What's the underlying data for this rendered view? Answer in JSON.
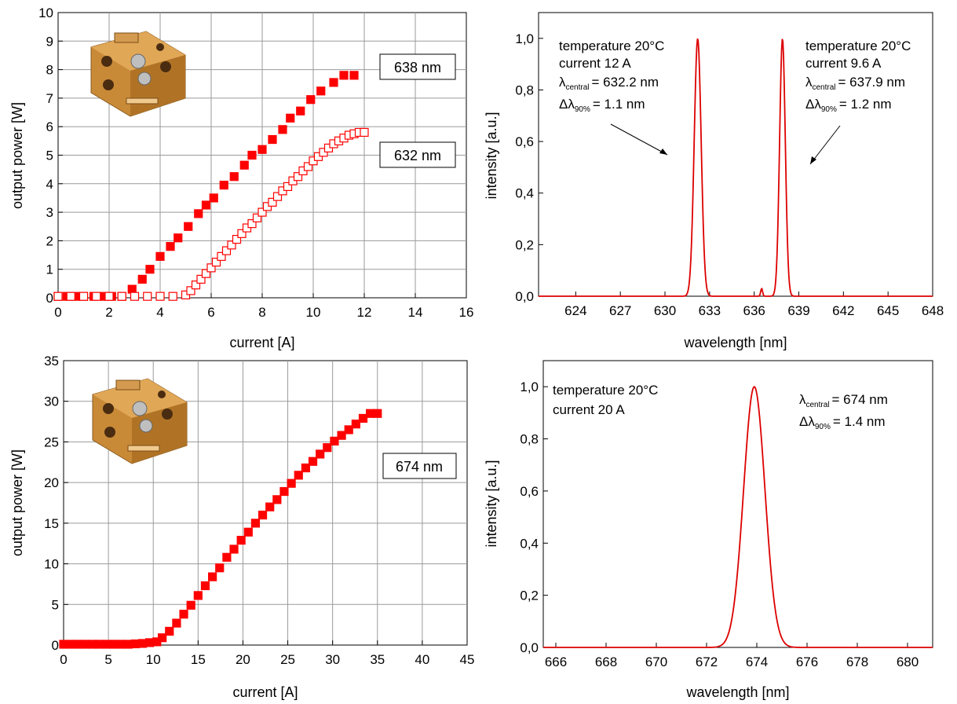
{
  "chart_data": [
    {
      "id": "liv638632",
      "type": "scatter",
      "xlabel": "current [A]",
      "ylabel": "output power [W]",
      "xlim": [
        0,
        16
      ],
      "ylim": [
        0,
        10
      ],
      "xticks": [
        0,
        2,
        4,
        6,
        8,
        10,
        12,
        14,
        16
      ],
      "yticks": [
        0,
        1,
        2,
        3,
        4,
        5,
        6,
        7,
        8,
        9,
        10
      ],
      "grid": true,
      "series": [
        {
          "name": "638 nm",
          "marker": "filled-square",
          "color": "#ff0000",
          "x": [
            0.0,
            0.35,
            0.7,
            1.0,
            1.4,
            1.8,
            2.1,
            2.5,
            2.9,
            3.3,
            3.6,
            4.0,
            4.4,
            4.7,
            5.1,
            5.5,
            5.8,
            6.1,
            6.5,
            6.9,
            7.3,
            7.6,
            8.0,
            8.4,
            8.8,
            9.1,
            9.5,
            9.9,
            10.3,
            10.8,
            11.2,
            11.6
          ],
          "y": [
            0.05,
            0.05,
            0.05,
            0.05,
            0.05,
            0.05,
            0.05,
            0.05,
            0.3,
            0.65,
            1.0,
            1.45,
            1.8,
            2.1,
            2.5,
            2.95,
            3.25,
            3.5,
            3.95,
            4.25,
            4.65,
            5.0,
            5.2,
            5.55,
            5.9,
            6.3,
            6.55,
            6.95,
            7.25,
            7.55,
            7.8,
            7.8
          ]
        },
        {
          "name": "632 nm",
          "marker": "open-square",
          "color": "#ff0000",
          "x": [
            0.0,
            0.5,
            1.0,
            1.5,
            2.0,
            2.5,
            3.0,
            3.5,
            4.0,
            4.5,
            5.0,
            5.2,
            5.4,
            5.6,
            5.8,
            6.0,
            6.2,
            6.4,
            6.6,
            6.8,
            7.0,
            7.2,
            7.4,
            7.6,
            7.8,
            8.0,
            8.2,
            8.4,
            8.6,
            8.8,
            9.0,
            9.2,
            9.4,
            9.6,
            9.8,
            10.0,
            10.2,
            10.4,
            10.6,
            10.8,
            11.0,
            11.2,
            11.4,
            11.6,
            11.8,
            12.0
          ],
          "y": [
            0.05,
            0.05,
            0.05,
            0.05,
            0.05,
            0.05,
            0.05,
            0.05,
            0.05,
            0.05,
            0.1,
            0.25,
            0.45,
            0.65,
            0.85,
            1.05,
            1.25,
            1.45,
            1.65,
            1.85,
            2.05,
            2.25,
            2.45,
            2.6,
            2.8,
            3.0,
            3.2,
            3.35,
            3.55,
            3.75,
            3.9,
            4.1,
            4.25,
            4.45,
            4.6,
            4.8,
            4.95,
            5.1,
            5.25,
            5.4,
            5.5,
            5.6,
            5.7,
            5.75,
            5.8,
            5.8
          ]
        }
      ],
      "labels": [
        "638 nm",
        "632 nm"
      ]
    },
    {
      "id": "spec632638",
      "type": "line",
      "xlabel": "wavelength [nm]",
      "ylabel": "intensity [a.u.]",
      "xlim": [
        621.5,
        648
      ],
      "ylim": [
        0,
        1.1
      ],
      "xticks": [
        "624",
        "627",
        "630",
        "633",
        "636",
        "639",
        "642",
        "645",
        "648"
      ],
      "yticks": [
        "0,0",
        "0,2",
        "0,4",
        "0,6",
        "0,8",
        "1,0"
      ],
      "grid": false,
      "series": [
        {
          "color": "#dd0000",
          "peaks": [
            {
              "center": 632.2,
              "fwhm": 0.55,
              "amplitude": 1.0
            },
            {
              "center": 637.9,
              "fwhm": 0.45,
              "amplitude": 1.0
            },
            {
              "center": 636.5,
              "fwhm": 0.15,
              "amplitude": 0.03
            }
          ]
        }
      ],
      "annotations": [
        {
          "lines": [
            "temperature 20°C",
            "current 12 A"
          ],
          "lambda_central": "= 632.2 nm",
          "delta_lambda": "= 1.1 nm"
        },
        {
          "lines": [
            "temperature 20°C",
            "current 9.6 A"
          ],
          "lambda_central": "= 637.9 nm",
          "delta_lambda": "= 1.2 nm"
        }
      ]
    },
    {
      "id": "liv674",
      "type": "scatter",
      "xlabel": "current [A]",
      "ylabel": "output power [W]",
      "xlim": [
        0,
        45
      ],
      "ylim": [
        0,
        35
      ],
      "xticks": [
        0,
        5,
        10,
        15,
        20,
        25,
        30,
        35,
        40,
        45
      ],
      "yticks": [
        0,
        5,
        10,
        15,
        20,
        25,
        30,
        35
      ],
      "grid": true,
      "series": [
        {
          "name": "674 nm",
          "marker": "filled-square",
          "color": "#ff0000",
          "x": [
            0.0,
            0.8,
            1.6,
            2.4,
            3.2,
            4.0,
            4.8,
            5.6,
            6.4,
            7.2,
            8.0,
            8.8,
            9.6,
            10.4,
            11.0,
            11.8,
            12.6,
            13.4,
            14.2,
            15.0,
            15.8,
            16.6,
            17.4,
            18.2,
            19.0,
            19.8,
            20.6,
            21.4,
            22.2,
            23.0,
            23.8,
            24.6,
            25.4,
            26.2,
            27.0,
            27.8,
            28.6,
            29.4,
            30.2,
            31.0,
            31.8,
            32.6,
            33.4,
            34.2,
            35.0
          ],
          "y": [
            0.1,
            0.1,
            0.1,
            0.1,
            0.1,
            0.1,
            0.1,
            0.1,
            0.1,
            0.1,
            0.15,
            0.2,
            0.3,
            0.4,
            0.9,
            1.7,
            2.7,
            3.8,
            4.9,
            6.1,
            7.3,
            8.4,
            9.5,
            10.8,
            11.8,
            12.9,
            13.9,
            15.0,
            16.0,
            17.0,
            17.9,
            18.9,
            19.9,
            20.9,
            21.8,
            22.6,
            23.5,
            24.3,
            25.1,
            25.8,
            26.5,
            27.2,
            27.9,
            28.5,
            28.5
          ]
        }
      ],
      "labels": [
        "674 nm"
      ]
    },
    {
      "id": "spec674",
      "type": "line",
      "xlabel": "wavelength [nm]",
      "ylabel": "intensity [a.u.]",
      "xlim": [
        665.5,
        681
      ],
      "ylim": [
        0,
        1.1
      ],
      "xticks": [
        "666",
        "668",
        "670",
        "672",
        "674",
        "676",
        "678",
        "680"
      ],
      "yticks": [
        "0,0",
        "0,2",
        "0,4",
        "0,6",
        "0,8",
        "1,0"
      ],
      "grid": false,
      "series": [
        {
          "color": "#dd0000",
          "peaks": [
            {
              "center": 673.9,
              "fwhm": 1.0,
              "amplitude": 1.0
            }
          ]
        }
      ],
      "annotations": [
        {
          "lines": [
            "temperature 20°C",
            "current 20 A"
          ]
        },
        {
          "lambda_central": "= 674 nm",
          "delta_lambda": "= 1.4 nm"
        }
      ]
    }
  ],
  "symbols": {
    "lambda": "λ",
    "delta_lambda": "Δλ",
    "central_sub": "central",
    "ninety_sub": "90%"
  }
}
